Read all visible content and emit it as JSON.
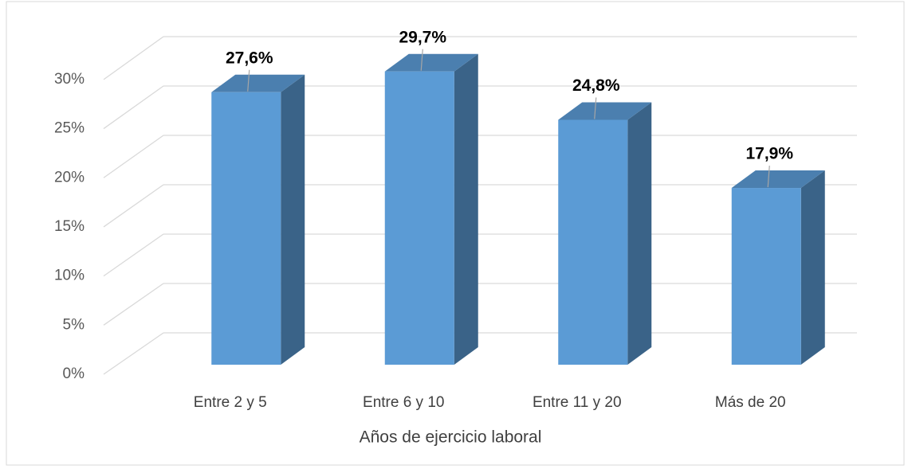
{
  "chart_data": {
    "type": "bar3d",
    "x_label": "Años de ejercicio laboral",
    "categories": [
      "Entre 2 y 5",
      "Entre 6 y 10",
      "Entre 11 y 20",
      "Más de 20"
    ],
    "values": [
      27.6,
      29.7,
      24.8,
      17.9
    ],
    "value_labels": [
      "27,6%",
      "29,7%",
      "24,8%",
      "17,9%"
    ],
    "color": "#5b9bd5",
    "ylim": [
      0,
      30
    ],
    "yticks": [
      {
        "value": 0,
        "label": "0%"
      },
      {
        "value": 5,
        "label": "5%"
      },
      {
        "value": 10,
        "label": "10%"
      },
      {
        "value": 15,
        "label": "15%"
      },
      {
        "value": 20,
        "label": "20%"
      },
      {
        "value": 25,
        "label": "25%"
      },
      {
        "value": 30,
        "label": "30%"
      }
    ],
    "grid": true
  }
}
